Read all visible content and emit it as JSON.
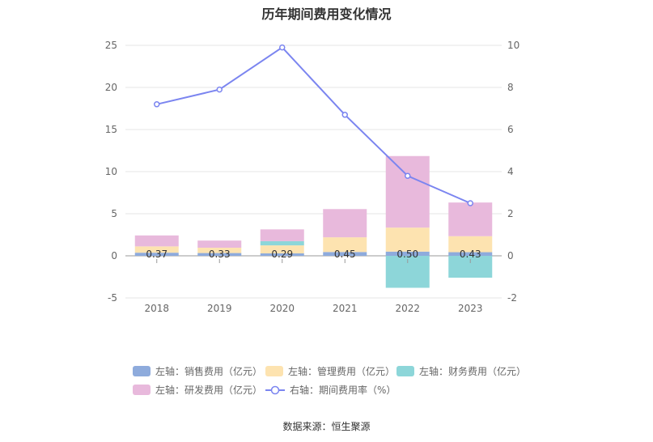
{
  "title": "历年期间费用变化情况",
  "source": "数据来源：恒生聚源",
  "chart_data": {
    "type": "bar",
    "stacked": true,
    "categories": [
      "2018",
      "2019",
      "2020",
      "2021",
      "2022",
      "2023"
    ],
    "series": [
      {
        "name": "左轴：销售费用（亿元）",
        "axis": "left",
        "color": "#8eabdc",
        "values": [
          0.37,
          0.33,
          0.29,
          0.45,
          0.5,
          0.43
        ]
      },
      {
        "name": "左轴：管理费用（亿元）",
        "axis": "left",
        "color": "#fde3b0",
        "values": [
          0.75,
          0.63,
          0.95,
          1.75,
          2.85,
          1.9
        ]
      },
      {
        "name": "左轴：财务费用（亿元）",
        "axis": "left",
        "color": "#8dd6d9",
        "values": [
          0.0,
          0.0,
          0.5,
          0.0,
          -3.8,
          -2.6
        ]
      },
      {
        "name": "左轴：研发费用（亿元）",
        "axis": "left",
        "color": "#e8b9dc",
        "values": [
          1.3,
          0.85,
          1.4,
          3.35,
          8.5,
          4.0
        ]
      }
    ],
    "line_series": {
      "name": "右轴：期间费用率（%）",
      "axis": "right",
      "color": "#7b85f0",
      "values": [
        7.2,
        7.9,
        9.9,
        6.7,
        3.8,
        2.5
      ]
    },
    "data_labels": [
      "0.37",
      "0.33",
      "0.29",
      "0.45",
      "0.50",
      "0.43"
    ],
    "y_left": {
      "min": -5,
      "max": 25,
      "ticks": [
        "25",
        "20",
        "15",
        "10",
        "5",
        "0",
        "-5"
      ]
    },
    "y_right": {
      "min": -2,
      "max": 10,
      "ticks": [
        "10",
        "8",
        "6",
        "4",
        "2",
        "0",
        "-2"
      ]
    }
  }
}
